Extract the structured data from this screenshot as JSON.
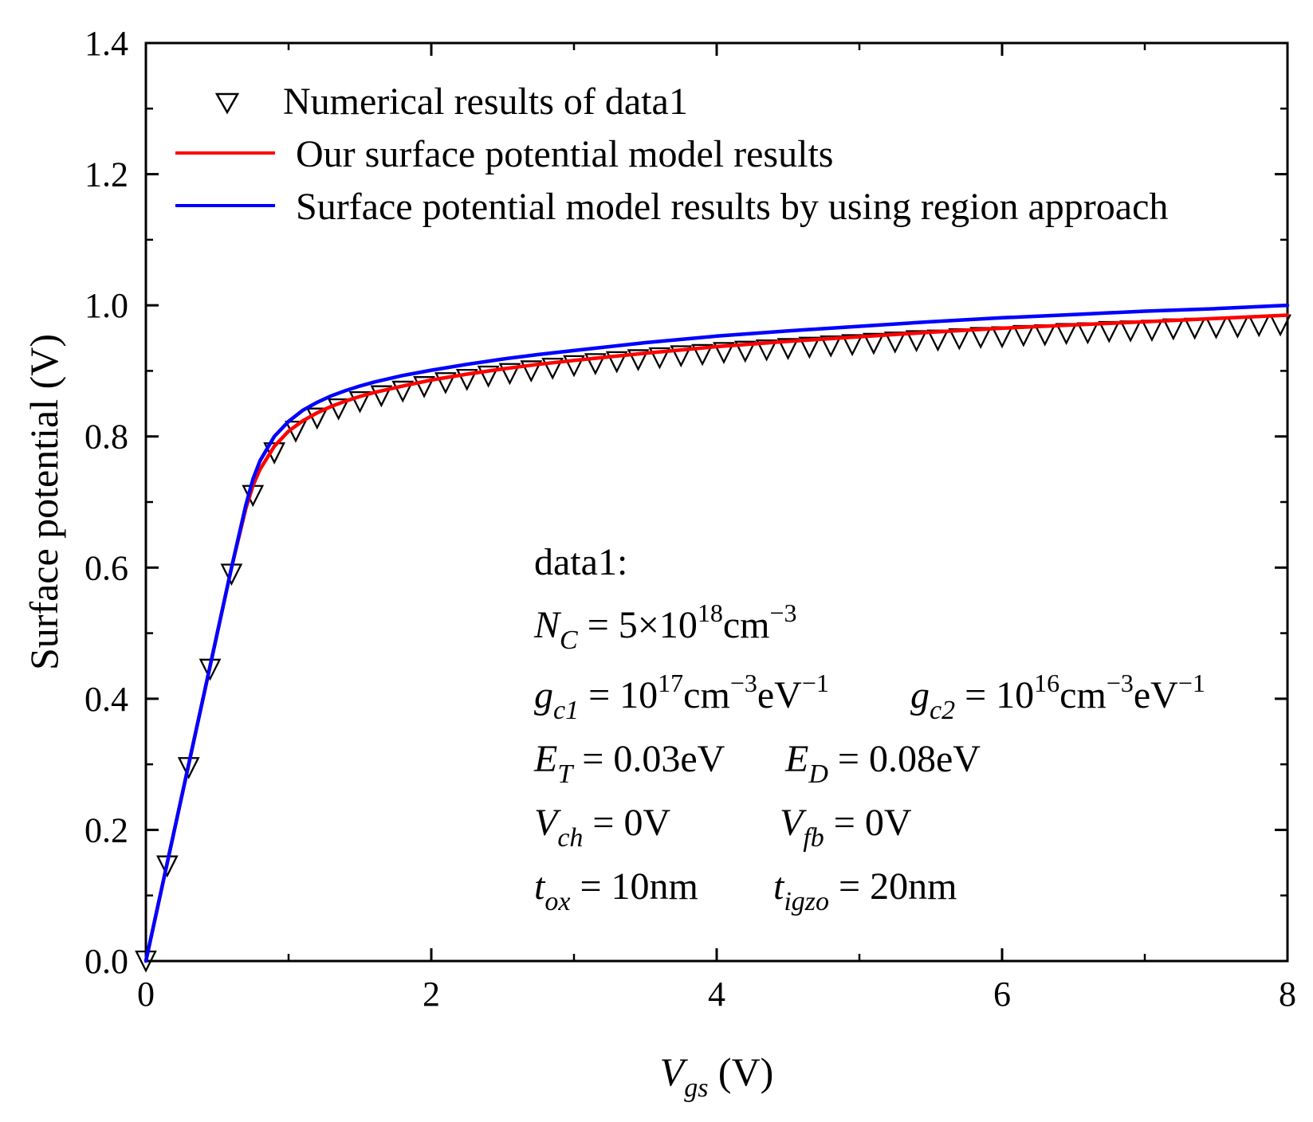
{
  "chart_data": {
    "type": "line",
    "title": "",
    "xlabel": {
      "main": "V",
      "sub": "gs",
      "unit": " (V)"
    },
    "ylabel": "Surface potential (V)",
    "xlim": [
      0,
      8
    ],
    "ylim": [
      0,
      1.4
    ],
    "xticks": [
      "0",
      "2",
      "4",
      "6",
      "8"
    ],
    "yticks": [
      "0.0",
      "0.2",
      "0.4",
      "0.6",
      "0.8",
      "1.0",
      "1.2",
      "1.4"
    ],
    "grid": false,
    "legend_position": "top-left",
    "colors": {
      "numerical": "#000000",
      "ours": "#ff0000",
      "region": "#0000ff"
    },
    "series": [
      {
        "name": "Numerical results of data1",
        "style": "open-triangle-down",
        "x": [
          0,
          0.15,
          0.3,
          0.45,
          0.6,
          0.75,
          0.9,
          1.05,
          1.2,
          1.35,
          1.5,
          1.65,
          1.8,
          1.95,
          2.1,
          2.25,
          2.4,
          2.55,
          2.7,
          2.85,
          3.0,
          3.15,
          3.3,
          3.45,
          3.6,
          3.75,
          3.9,
          4.05,
          4.2,
          4.35,
          4.5,
          4.65,
          4.8,
          4.95,
          5.1,
          5.25,
          5.4,
          5.55,
          5.7,
          5.85,
          6.0,
          6.15,
          6.3,
          6.45,
          6.6,
          6.75,
          6.9,
          7.05,
          7.2,
          7.35,
          7.5,
          7.65,
          7.8,
          7.95
        ],
        "y": [
          0.0,
          0.145,
          0.295,
          0.445,
          0.59,
          0.71,
          0.775,
          0.808,
          0.828,
          0.842,
          0.853,
          0.862,
          0.869,
          0.876,
          0.882,
          0.887,
          0.892,
          0.896,
          0.9,
          0.904,
          0.908,
          0.911,
          0.914,
          0.917,
          0.92,
          0.923,
          0.925,
          0.928,
          0.93,
          0.932,
          0.934,
          0.936,
          0.938,
          0.94,
          0.942,
          0.944,
          0.946,
          0.947,
          0.949,
          0.951,
          0.952,
          0.954,
          0.955,
          0.957,
          0.958,
          0.96,
          0.961,
          0.962,
          0.964,
          0.965,
          0.966,
          0.967,
          0.969,
          0.97
        ]
      },
      {
        "name": "Our surface potential model results",
        "style": "line",
        "x": [
          0,
          0.1,
          0.2,
          0.3,
          0.4,
          0.5,
          0.6,
          0.7,
          0.75,
          0.8,
          0.9,
          1.0,
          1.1,
          1.2,
          1.3,
          1.4,
          1.5,
          1.6,
          1.8,
          2.0,
          2.25,
          2.5,
          2.75,
          3.0,
          3.5,
          4.0,
          4.5,
          5.0,
          5.5,
          6.0,
          6.5,
          7.0,
          7.5,
          8.0
        ],
        "y": [
          0.0,
          0.1,
          0.2,
          0.3,
          0.4,
          0.5,
          0.6,
          0.69,
          0.725,
          0.75,
          0.785,
          0.808,
          0.824,
          0.836,
          0.846,
          0.854,
          0.861,
          0.867,
          0.877,
          0.886,
          0.895,
          0.903,
          0.91,
          0.916,
          0.927,
          0.937,
          0.945,
          0.952,
          0.959,
          0.965,
          0.97,
          0.975,
          0.98,
          0.985
        ]
      },
      {
        "name": "Surface potential model results by using region approach",
        "style": "line",
        "x": [
          0,
          0.1,
          0.2,
          0.3,
          0.4,
          0.5,
          0.6,
          0.7,
          0.75,
          0.8,
          0.9,
          1.0,
          1.1,
          1.2,
          1.3,
          1.4,
          1.5,
          1.6,
          1.8,
          2.0,
          2.25,
          2.5,
          2.75,
          3.0,
          3.5,
          4.0,
          4.5,
          5.0,
          5.5,
          6.0,
          6.5,
          7.0,
          7.5,
          8.0
        ],
        "y": [
          0.0,
          0.1,
          0.2,
          0.3,
          0.4,
          0.5,
          0.6,
          0.695,
          0.735,
          0.763,
          0.8,
          0.823,
          0.84,
          0.852,
          0.862,
          0.87,
          0.877,
          0.883,
          0.893,
          0.901,
          0.91,
          0.918,
          0.925,
          0.931,
          0.943,
          0.953,
          0.961,
          0.968,
          0.975,
          0.981,
          0.986,
          0.991,
          0.995,
          1.0
        ]
      }
    ],
    "annotation": {
      "heading": "data1:",
      "nc": {
        "sym": "N",
        "sub": "C",
        "pre": " = 5×10",
        "sup1": "18",
        "mid": "cm",
        "sup2": "−3"
      },
      "gc1": {
        "sym": "g",
        "sub": "c1",
        "pre": " = 10",
        "sup1": "17",
        "mid": "cm",
        "sup2": "−3",
        "mid2": "eV",
        "sup3": "−1"
      },
      "gc2": {
        "sym": "g",
        "sub": "c2",
        "pre": " = 10",
        "sup1": "16",
        "mid": "cm",
        "sup2": "−3",
        "mid2": "eV",
        "sup3": "−1"
      },
      "et": {
        "sym": "E",
        "sub": "T",
        "val": " = 0.03eV"
      },
      "ed": {
        "sym": "E",
        "sub": "D",
        "val": " = 0.08eV"
      },
      "vch": {
        "sym": "V",
        "sub": "ch",
        "val": " = 0V"
      },
      "vfb": {
        "sym": "V",
        "sub": "fb",
        "val": " = 0V"
      },
      "tox": {
        "sym": "t",
        "sub": "ox",
        "val": " = 10nm"
      },
      "tigzo": {
        "sym": "t",
        "sub": "igzo",
        "val": " = 20nm"
      }
    }
  }
}
